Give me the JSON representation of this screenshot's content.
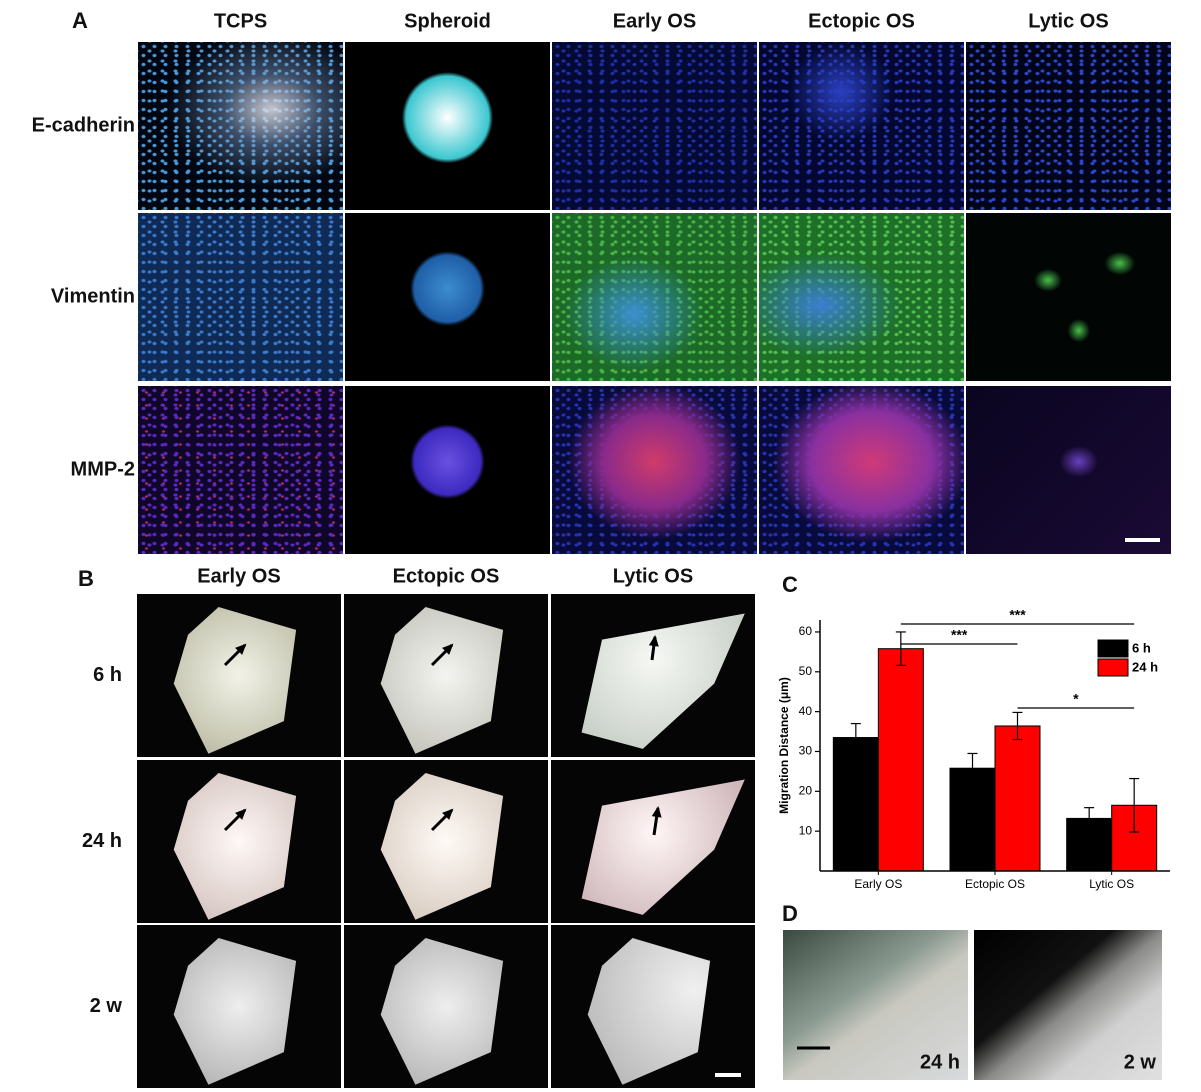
{
  "panel_a": {
    "label": "A",
    "columns": [
      "TCPS",
      "Spheroid",
      "Early OS",
      "Ectopic OS",
      "Lytic OS"
    ],
    "rows": [
      "E-cadherin",
      "Vimentin",
      "MMP-2"
    ]
  },
  "panel_b": {
    "label": "B",
    "columns": [
      "Early OS",
      "Ectopic OS",
      "Lytic OS"
    ],
    "rows": [
      "6 h",
      "24 h",
      "2 w"
    ]
  },
  "panel_c": {
    "label": "C"
  },
  "panel_d": {
    "label": "D",
    "images": [
      "24 h",
      "2 w"
    ]
  },
  "chart_data": {
    "type": "bar",
    "ylabel": "Migration Distance (μm)",
    "categories": [
      "Early OS",
      "Ectopic OS",
      "Lytic OS"
    ],
    "series": [
      {
        "name": "6 h",
        "color": "#000000",
        "values": [
          33.5,
          25.8,
          13.2
        ],
        "errors": [
          3.5,
          3.7,
          2.7
        ]
      },
      {
        "name": "24 h",
        "color": "#ff0000",
        "values": [
          55.8,
          36.4,
          16.5
        ],
        "errors": [
          4.2,
          3.4,
          6.7
        ]
      }
    ],
    "ylim": [
      0,
      63
    ],
    "yticks": [
      10,
      20,
      30,
      40,
      50,
      60
    ],
    "legend": "upper right",
    "annotations": [
      {
        "text": "***"
      },
      {
        "text": "***"
      },
      {
        "text": "*"
      }
    ]
  }
}
